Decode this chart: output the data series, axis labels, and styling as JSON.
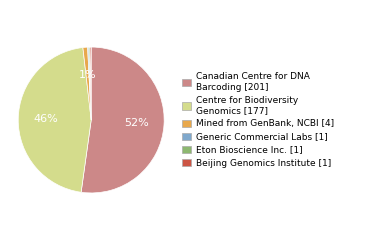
{
  "legend_labels": [
    "Canadian Centre for DNA\nBarcoding [201]",
    "Centre for Biodiversity\nGenomics [177]",
    "Mined from GenBank, NCBI [4]",
    "Generic Commercial Labs [1]",
    "Eton Bioscience Inc. [1]",
    "Beijing Genomics Institute [1]"
  ],
  "values": [
    201,
    177,
    4,
    1,
    1,
    1
  ],
  "colors": [
    "#cc8888",
    "#d4dc8c",
    "#e8a84c",
    "#7fa8cc",
    "#8db870",
    "#cc5544"
  ],
  "background_color": "#ffffff",
  "text_color": "#ffffff",
  "fontsize": 8.0,
  "legend_fontsize": 6.5,
  "startangle": 90
}
